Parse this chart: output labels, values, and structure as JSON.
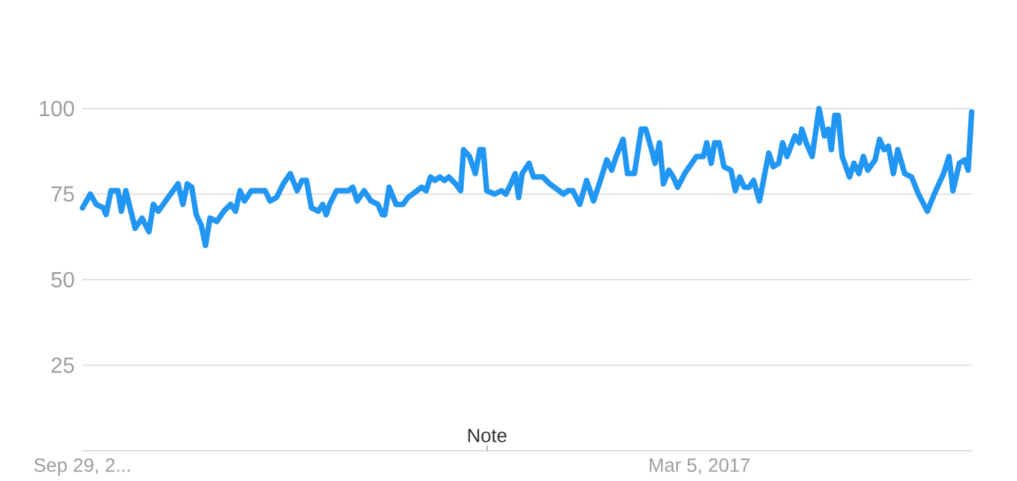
{
  "chart_data": {
    "type": "line",
    "color": "#2196f3",
    "x": [
      "2013-09-29",
      "2013-10-15",
      "2013-10-27",
      "2013-11-10",
      "2013-11-16",
      "2013-11-26",
      "2013-12-10",
      "2013-12-17",
      "2013-12-26",
      "2014-01-14",
      "2014-01-28",
      "2014-02-11",
      "2014-02-20",
      "2014-03-02",
      "2014-04-11",
      "2014-04-21",
      "2014-04-30",
      "2014-05-09",
      "2014-05-18",
      "2014-05-28",
      "2014-06-06",
      "2014-06-15",
      "2014-06-29",
      "2014-07-13",
      "2014-07-27",
      "2014-08-06",
      "2014-08-15",
      "2014-08-24",
      "2014-09-07",
      "2014-10-05",
      "2014-10-15",
      "2014-10-28",
      "2014-11-11",
      "2014-11-25",
      "2014-12-09",
      "2014-12-19",
      "2014-12-28",
      "2015-01-07",
      "2015-01-21",
      "2015-01-30",
      "2015-02-06",
      "2015-02-13",
      "2015-02-27",
      "2015-03-23",
      "2015-04-01",
      "2015-04-10",
      "2015-04-24",
      "2015-05-08",
      "2015-05-22",
      "2015-05-31",
      "2015-06-05",
      "2015-06-14",
      "2015-06-28",
      "2015-07-12",
      "2015-07-22",
      "2015-08-19",
      "2015-08-28",
      "2015-09-06",
      "2015-09-15",
      "2015-09-25",
      "2015-10-04",
      "2015-10-13",
      "2015-10-27",
      "2015-11-06",
      "2015-11-12",
      "2015-11-24",
      "2015-12-06",
      "2015-12-15",
      "2015-12-22",
      "2015-12-29",
      "2016-01-14",
      "2016-01-28",
      "2016-02-06",
      "2016-02-16",
      "2016-02-25",
      "2016-03-03",
      "2016-03-10",
      "2016-03-24",
      "2016-04-02",
      "2016-04-21",
      "2016-05-05",
      "2016-05-24",
      "2016-06-02",
      "2016-06-11",
      "2016-06-21",
      "2016-07-05",
      "2016-07-19",
      "2016-08-02",
      "2016-08-16",
      "2016-08-29",
      "2016-09-08",
      "2016-09-17",
      "2016-10-01",
      "2016-10-10",
      "2016-10-24",
      "2016-11-07",
      "2016-11-16",
      "2016-11-26",
      "2016-12-05",
      "2016-12-14",
      "2016-12-22",
      "2017-01-02",
      "2017-01-11",
      "2017-01-20",
      "2017-02-03",
      "2017-02-27",
      "2017-03-13",
      "2017-03-20",
      "2017-03-29",
      "2017-04-05",
      "2017-04-14",
      "2017-04-24",
      "2017-05-08",
      "2017-05-17",
      "2017-05-26",
      "2017-06-04",
      "2017-06-14",
      "2017-06-23",
      "2017-07-05",
      "2017-07-24",
      "2017-08-02",
      "2017-08-13",
      "2017-08-21",
      "2017-08-30",
      "2017-09-15",
      "2017-09-24",
      "2017-09-29",
      "2017-10-08",
      "2017-10-20",
      "2017-11-03",
      "2017-11-14",
      "2017-11-22",
      "2017-11-28",
      "2017-12-05",
      "2017-12-12",
      "2017-12-20",
      "2018-01-04",
      "2018-01-13",
      "2018-01-23",
      "2018-02-01",
      "2018-02-10",
      "2018-02-25",
      "2018-03-06",
      "2018-03-15",
      "2018-03-24",
      "2018-04-03",
      "2018-04-12",
      "2018-04-26",
      "2018-05-10",
      "2018-05-24",
      "2018-06-11",
      "2018-06-25",
      "2018-07-14",
      "2018-07-25",
      "2018-08-02",
      "2018-08-15",
      "2018-08-26",
      "2018-09-02",
      "2018-09-09"
    ],
    "values": [
      71,
      75,
      72,
      71,
      69,
      76,
      76,
      70,
      76,
      65,
      68,
      64,
      72,
      70,
      78,
      72,
      78,
      77,
      69,
      66,
      60,
      68,
      67,
      70,
      72,
      70,
      76,
      73,
      76,
      76,
      73,
      74,
      78,
      81,
      76,
      79,
      79,
      71,
      70,
      72,
      69,
      72,
      76,
      76,
      77,
      73,
      76,
      73,
      72,
      69,
      69,
      77,
      72,
      72,
      74,
      77,
      76,
      80,
      79,
      80,
      79,
      80,
      78,
      76,
      88,
      86,
      81,
      88,
      88,
      76,
      75,
      76,
      75,
      78,
      81,
      74,
      81,
      84,
      80,
      80,
      78,
      76,
      75,
      76,
      76,
      72,
      79,
      73,
      79,
      85,
      82,
      86,
      91,
      81,
      81,
      94,
      94,
      89,
      84,
      90,
      78,
      82,
      80,
      77,
      81,
      86,
      86,
      90,
      84,
      90,
      90,
      83,
      82,
      76,
      80,
      77,
      77,
      79,
      73,
      87,
      83,
      84,
      90,
      86,
      92,
      90,
      94,
      90,
      86,
      100,
      92,
      94,
      88,
      98,
      98,
      86,
      80,
      84,
      81,
      86,
      82,
      85,
      91,
      88,
      89,
      81,
      88,
      81,
      80,
      75,
      70,
      75,
      81,
      86,
      76,
      84,
      85,
      82,
      99
    ],
    "xlim": [
      "2013-09-29",
      "2018-09-09"
    ],
    "ylim": [
      0,
      100
    ],
    "xticks": [
      {
        "value": "2013-09-29",
        "label": "Sep 29, 2..."
      },
      {
        "value": "2017-03-05",
        "label": "Mar 5, 2017"
      }
    ],
    "yticks": [
      25,
      50,
      75,
      100
    ],
    "grid": "y",
    "annotations": [
      "Note"
    ]
  }
}
